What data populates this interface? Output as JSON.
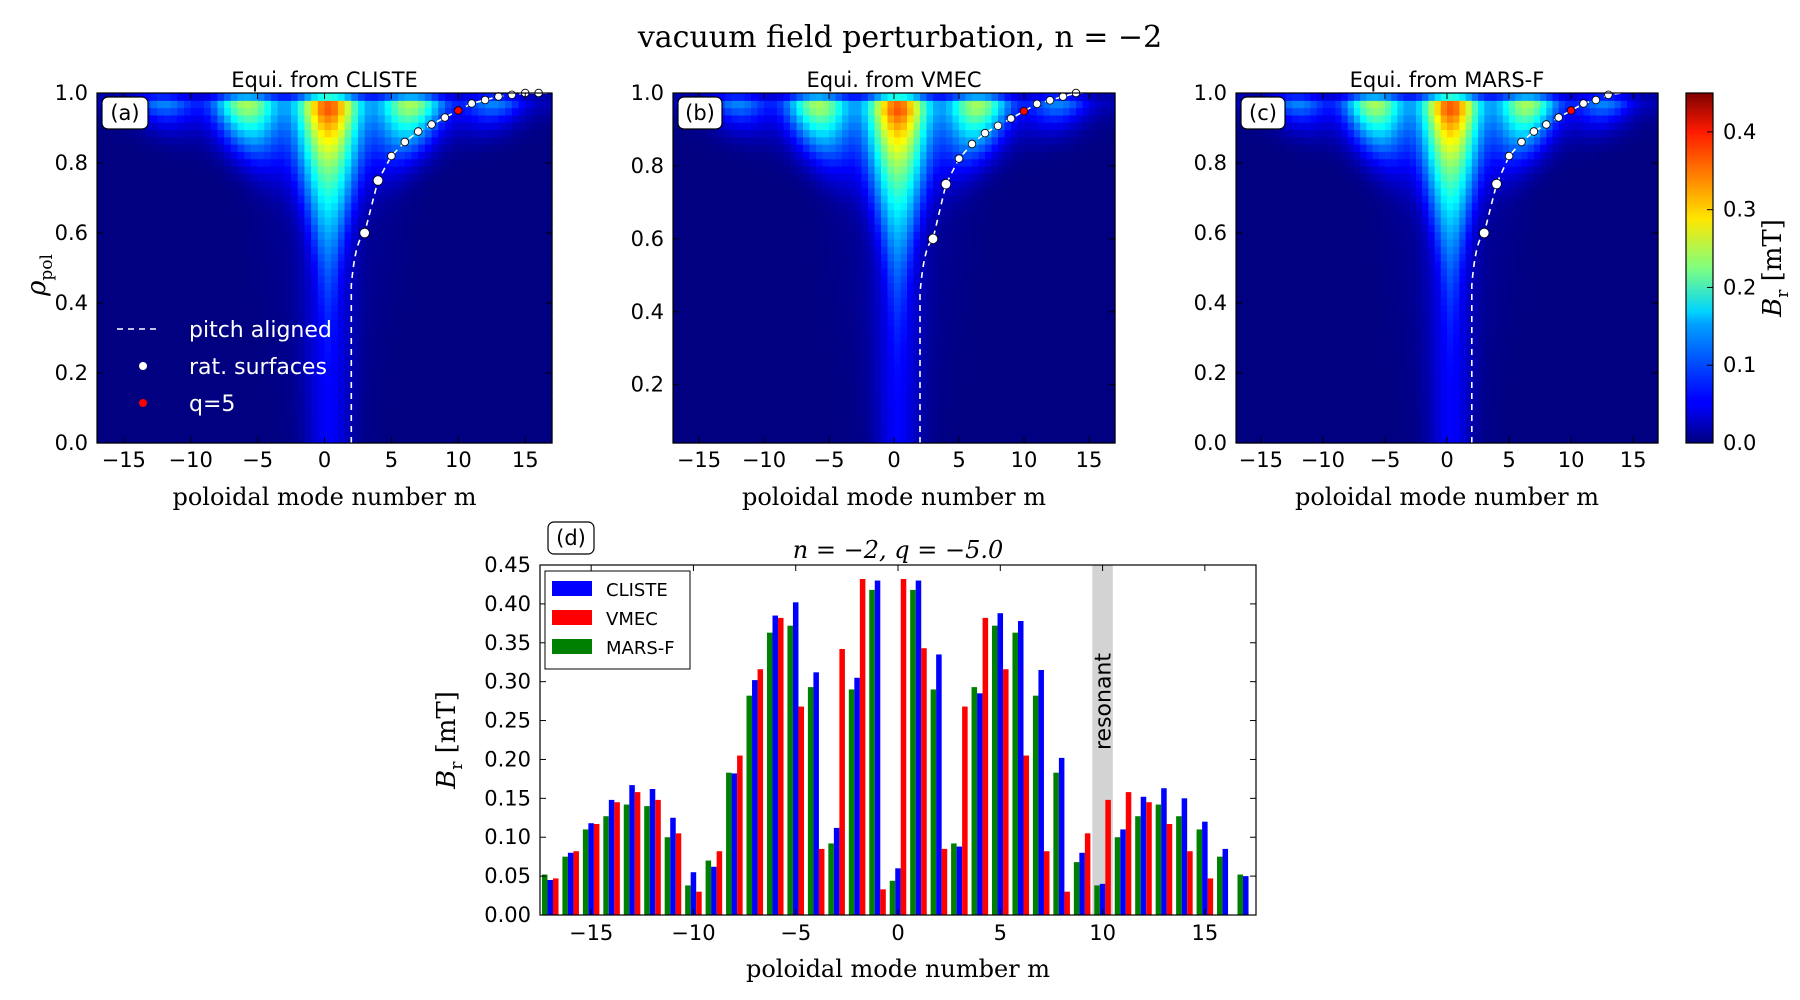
{
  "figure": {
    "title": "vacuum field perturbation, n = −2"
  },
  "colorbar": {
    "label": "B_r [mT]",
    "label_main": "B",
    "label_sub": "r",
    "label_unit": "[mT]",
    "ticks": [
      0.0,
      0.1,
      0.2,
      0.3,
      0.4
    ],
    "tick_labels": [
      "0.0",
      "0.1",
      "0.2",
      "0.3",
      "0.4"
    ],
    "vmin": 0.0,
    "vmax": 0.45,
    "colormap": "jet"
  },
  "chart_data": [
    {
      "type": "heatmap",
      "panel": "(a)",
      "title": "Equi. from CLISTE",
      "xlabel": "poloidal mode number m",
      "ylabel": "ρ_pol",
      "ylabel_main": "ρ",
      "ylabel_sub": "pol",
      "xlim": [
        -17,
        17
      ],
      "ylim": [
        0.0,
        1.0
      ],
      "xticks": [
        -15,
        -10,
        -5,
        0,
        5,
        10,
        15
      ],
      "xtick_labels": [
        "−15",
        "−10",
        "−5",
        "0",
        "5",
        "10",
        "15"
      ],
      "yticks": [
        0.0,
        0.2,
        0.4,
        0.6,
        0.8,
        1.0
      ],
      "ytick_labels": [
        "0.0",
        "0.2",
        "0.4",
        "0.6",
        "0.8",
        "1.0"
      ],
      "pitch_aligned": {
        "m_at_axis": 2.0,
        "m_at_edge": 17
      },
      "rational_surfaces": [
        {
          "m": 3,
          "rho": 0.6
        },
        {
          "m": 4,
          "rho": 0.75
        },
        {
          "m": 5,
          "rho": 0.82
        },
        {
          "m": 6,
          "rho": 0.86
        },
        {
          "m": 7,
          "rho": 0.89
        },
        {
          "m": 8,
          "rho": 0.91
        },
        {
          "m": 9,
          "rho": 0.93
        },
        {
          "m": 10,
          "rho": 0.95
        },
        {
          "m": 11,
          "rho": 0.97
        },
        {
          "m": 12,
          "rho": 0.98
        },
        {
          "m": 13,
          "rho": 0.99
        },
        {
          "m": 14,
          "rho": 0.995
        },
        {
          "m": 15,
          "rho": 1.0
        },
        {
          "m": 16,
          "rho": 1.0
        }
      ],
      "q5_surface": {
        "m": 10,
        "rho": 0.95
      },
      "legend": [
        {
          "label": "pitch aligned",
          "style": "dashed"
        },
        {
          "label": "rat. surfaces",
          "style": "white-dot"
        },
        {
          "label": "q=5",
          "style": "red-dot"
        }
      ]
    },
    {
      "type": "heatmap",
      "panel": "(b)",
      "title": "Equi. from VMEC",
      "xlabel": "poloidal mode number m",
      "xlim": [
        -17,
        17
      ],
      "ylim": [
        0.04,
        1.0
      ],
      "xticks": [
        -15,
        -10,
        -5,
        0,
        5,
        10,
        15
      ],
      "xtick_labels": [
        "−15",
        "−10",
        "−5",
        "0",
        "5",
        "10",
        "15"
      ],
      "yticks": [
        0.2,
        0.4,
        0.6,
        0.8,
        1.0
      ],
      "ytick_labels": [
        "0.2",
        "0.4",
        "0.6",
        "0.8",
        "1.0"
      ],
      "pitch_aligned": {
        "m_at_axis": 2.0,
        "m_at_edge": 15
      },
      "rational_surfaces": [
        {
          "m": 3,
          "rho": 0.6
        },
        {
          "m": 4,
          "rho": 0.75
        },
        {
          "m": 5,
          "rho": 0.82
        },
        {
          "m": 6,
          "rho": 0.86
        },
        {
          "m": 7,
          "rho": 0.89
        },
        {
          "m": 8,
          "rho": 0.91
        },
        {
          "m": 9,
          "rho": 0.93
        },
        {
          "m": 10,
          "rho": 0.95
        },
        {
          "m": 11,
          "rho": 0.97
        },
        {
          "m": 12,
          "rho": 0.98
        },
        {
          "m": 13,
          "rho": 0.99
        },
        {
          "m": 14,
          "rho": 1.0
        }
      ],
      "q5_surface": {
        "m": 10,
        "rho": 0.95
      }
    },
    {
      "type": "heatmap",
      "panel": "(c)",
      "title": "Equi. from MARS-F",
      "xlabel": "poloidal mode number m",
      "xlim": [
        -17,
        17
      ],
      "ylim": [
        0.0,
        1.0
      ],
      "xticks": [
        -15,
        -10,
        -5,
        0,
        5,
        10,
        15
      ],
      "xtick_labels": [
        "−15",
        "−10",
        "−5",
        "0",
        "5",
        "10",
        "15"
      ],
      "yticks": [
        0.0,
        0.2,
        0.4,
        0.6,
        0.8,
        1.0
      ],
      "ytick_labels": [
        "0.0",
        "0.2",
        "0.4",
        "0.6",
        "0.8",
        "1.0"
      ],
      "pitch_aligned": {
        "m_at_axis": 2.0,
        "m_at_edge": 14
      },
      "rational_surfaces": [
        {
          "m": 3,
          "rho": 0.6
        },
        {
          "m": 4,
          "rho": 0.74
        },
        {
          "m": 5,
          "rho": 0.82
        },
        {
          "m": 6,
          "rho": 0.86
        },
        {
          "m": 7,
          "rho": 0.89
        },
        {
          "m": 8,
          "rho": 0.91
        },
        {
          "m": 9,
          "rho": 0.93
        },
        {
          "m": 10,
          "rho": 0.95
        },
        {
          "m": 11,
          "rho": 0.97
        },
        {
          "m": 12,
          "rho": 0.98
        },
        {
          "m": 13,
          "rho": 0.995
        }
      ],
      "q5_surface": {
        "m": 10,
        "rho": 0.95
      }
    },
    {
      "type": "bar",
      "panel": "(d)",
      "title": "n = −2, q = −5.0",
      "xlabel": "poloidal mode number m",
      "ylabel": "B_r [mT]",
      "ylabel_main": "B",
      "ylabel_sub": "r",
      "ylabel_unit": "[mT]",
      "xlim": [
        -17.5,
        17.5
      ],
      "ylim": [
        0.0,
        0.45
      ],
      "xticks": [
        -15,
        -10,
        -5,
        0,
        5,
        10,
        15
      ],
      "xtick_labels": [
        "−15",
        "−10",
        "−5",
        "0",
        "5",
        "10",
        "15"
      ],
      "yticks": [
        0.0,
        0.05,
        0.1,
        0.15,
        0.2,
        0.25,
        0.3,
        0.35,
        0.4,
        0.45
      ],
      "ytick_labels": [
        "0.00",
        "0.05",
        "0.10",
        "0.15",
        "0.20",
        "0.25",
        "0.30",
        "0.35",
        "0.40",
        "0.45"
      ],
      "resonant_m": 10,
      "resonant_label": "resonant",
      "categories": [
        -17,
        -16,
        -15,
        -14,
        -13,
        -12,
        -11,
        -10,
        -9,
        -8,
        -7,
        -6,
        -5,
        -4,
        -3,
        -2,
        -1,
        0,
        1,
        2,
        3,
        4,
        5,
        6,
        7,
        8,
        9,
        10,
        11,
        12,
        13,
        14,
        15,
        16,
        17
      ],
      "series": [
        {
          "name": "CLISTE",
          "color": "#0000ff",
          "values": [
            0.045,
            0.08,
            0.118,
            0.148,
            0.167,
            0.162,
            0.125,
            0.055,
            0.062,
            0.182,
            0.302,
            0.385,
            0.402,
            0.312,
            0.112,
            0.305,
            0.43,
            0.06,
            0.43,
            0.335,
            0.088,
            0.285,
            0.388,
            0.378,
            0.315,
            0.202,
            0.08,
            0.04,
            0.11,
            0.152,
            0.163,
            0.15,
            0.12,
            0.085,
            0.05
          ]
        },
        {
          "name": "VMEC",
          "color": "#ff0000",
          "values": [
            0.047,
            0.082,
            0.117,
            0.145,
            0.158,
            0.148,
            0.105,
            0.03,
            0.082,
            0.205,
            0.316,
            0.382,
            0.268,
            0.085,
            0.342,
            0.432,
            0.033,
            0.432,
            0.343,
            0.085,
            0.268,
            0.382,
            0.316,
            0.205,
            0.082,
            0.03,
            0.105,
            0.148,
            0.158,
            0.145,
            0.117,
            0.082,
            0.047,
            0.0,
            0.0
          ]
        },
        {
          "name": "MARS-F",
          "color": "#008000",
          "values": [
            0.052,
            0.075,
            0.11,
            0.127,
            0.142,
            0.14,
            0.1,
            0.038,
            0.07,
            0.183,
            0.282,
            0.363,
            0.372,
            0.293,
            0.092,
            0.29,
            0.418,
            0.044,
            0.418,
            0.29,
            0.092,
            0.293,
            0.372,
            0.363,
            0.282,
            0.183,
            0.068,
            0.038,
            0.1,
            0.127,
            0.142,
            0.127,
            0.11,
            0.075,
            0.052
          ]
        }
      ],
      "legend_position": "top-left"
    }
  ]
}
